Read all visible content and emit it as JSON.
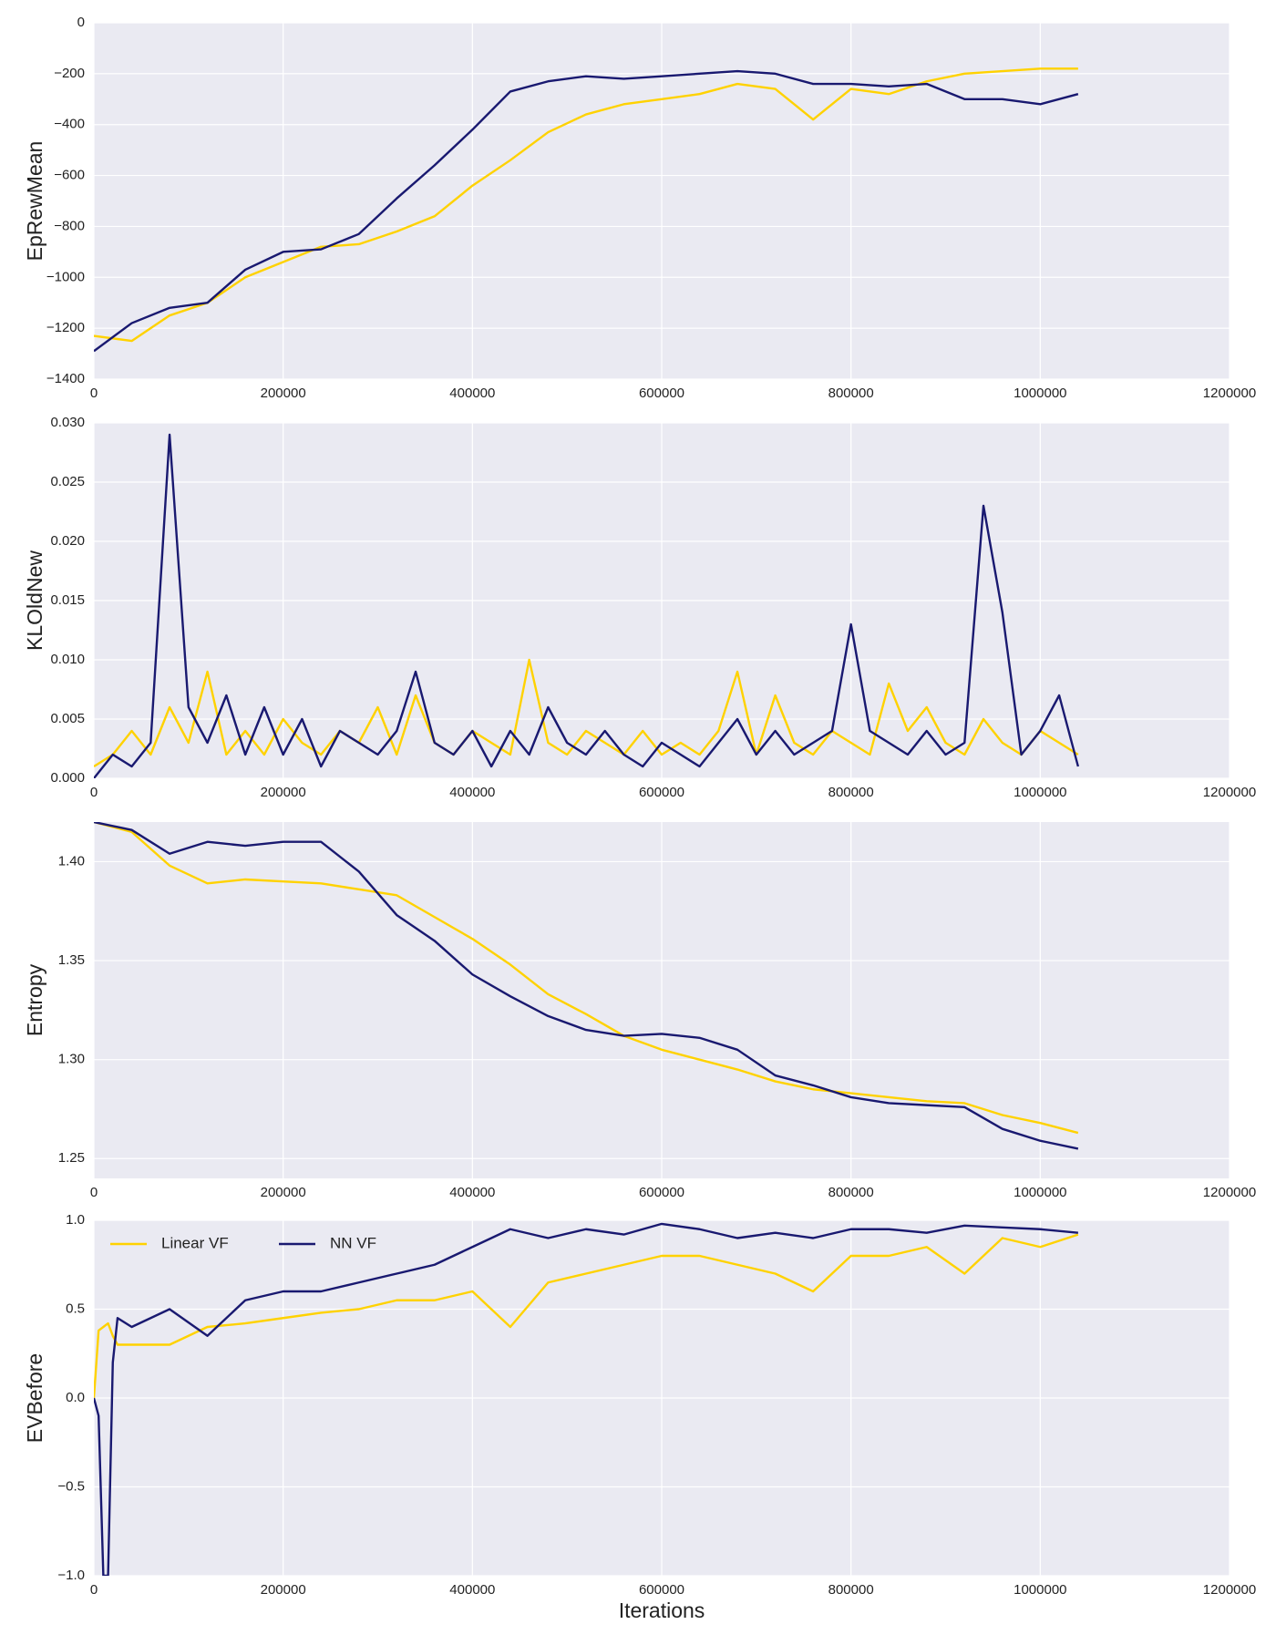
{
  "chart_data": [
    {
      "type": "line",
      "ylabel": "EpRewMean",
      "grid": true,
      "x": [
        0,
        40000,
        80000,
        120000,
        160000,
        200000,
        240000,
        280000,
        320000,
        360000,
        400000,
        440000,
        480000,
        520000,
        560000,
        600000,
        640000,
        680000,
        720000,
        760000,
        800000,
        840000,
        880000,
        920000,
        960000,
        1000000,
        1040000
      ],
      "xlim": [
        0,
        1200000
      ],
      "xticks": [
        0,
        200000,
        400000,
        600000,
        800000,
        1000000,
        1200000
      ],
      "ylim": [
        -1400,
        0
      ],
      "yticks": [
        {
          "value": -1400,
          "label": "−1400"
        },
        {
          "value": -1200,
          "label": "−1200"
        },
        {
          "value": -1000,
          "label": "−1000"
        },
        {
          "value": -800,
          "label": "−800"
        },
        {
          "value": -600,
          "label": "−600"
        },
        {
          "value": -400,
          "label": "−400"
        },
        {
          "value": -200,
          "label": "−200"
        },
        0
      ],
      "series": [
        {
          "color": "#ffd200",
          "values": [
            -1230,
            -1250,
            -1150,
            -1100,
            -1000,
            -940,
            -880,
            -870,
            -820,
            -760,
            -640,
            -540,
            -430,
            -360,
            -320,
            -300,
            -280,
            -240,
            -260,
            -380,
            -260,
            -280,
            -230,
            -200,
            -190,
            -180,
            -180
          ]
        },
        {
          "color": "#191970",
          "values": [
            -1290,
            -1180,
            -1120,
            -1100,
            -970,
            -900,
            -890,
            -830,
            -690,
            -560,
            -420,
            -270,
            -230,
            -210,
            -220,
            -210,
            -200,
            -190,
            -200,
            -240,
            -240,
            -250,
            -240,
            -300,
            -300,
            -320,
            -280
          ]
        }
      ]
    },
    {
      "type": "line",
      "ylabel": "KLOldNew",
      "grid": true,
      "x": [
        0,
        20000,
        40000,
        60000,
        80000,
        100000,
        120000,
        140000,
        160000,
        180000,
        200000,
        220000,
        240000,
        260000,
        280000,
        300000,
        320000,
        340000,
        360000,
        380000,
        400000,
        420000,
        440000,
        460000,
        480000,
        500000,
        520000,
        540000,
        560000,
        580000,
        600000,
        620000,
        640000,
        660000,
        680000,
        700000,
        720000,
        740000,
        760000,
        780000,
        800000,
        820000,
        840000,
        860000,
        880000,
        900000,
        920000,
        940000,
        960000,
        980000,
        1000000,
        1020000,
        1040000
      ],
      "xlim": [
        0,
        1200000
      ],
      "xticks": [
        0,
        200000,
        400000,
        600000,
        800000,
        1000000,
        1200000
      ],
      "ylim": [
        0,
        0.03
      ],
      "yticks": [
        {
          "value": 0,
          "label": "0.000"
        },
        {
          "value": 0.005,
          "label": "0.005"
        },
        {
          "value": 0.01,
          "label": "0.010"
        },
        {
          "value": 0.015,
          "label": "0.015"
        },
        {
          "value": 0.02,
          "label": "0.020"
        },
        {
          "value": 0.025,
          "label": "0.025"
        },
        {
          "value": 0.03,
          "label": "0.030"
        }
      ],
      "series": [
        {
          "color": "#ffd200",
          "values": [
            0.001,
            0.002,
            0.004,
            0.002,
            0.006,
            0.003,
            0.009,
            0.002,
            0.004,
            0.002,
            0.005,
            0.003,
            0.002,
            0.004,
            0.003,
            0.006,
            0.002,
            0.007,
            0.003,
            0.002,
            0.004,
            0.003,
            0.002,
            0.01,
            0.003,
            0.002,
            0.004,
            0.003,
            0.002,
            0.004,
            0.002,
            0.003,
            0.002,
            0.004,
            0.009,
            0.002,
            0.007,
            0.003,
            0.002,
            0.004,
            0.003,
            0.002,
            0.008,
            0.004,
            0.006,
            0.003,
            0.002,
            0.005,
            0.003,
            0.002,
            0.004,
            0.003,
            0.002
          ]
        },
        {
          "color": "#191970",
          "values": [
            0.0,
            0.002,
            0.001,
            0.003,
            0.029,
            0.006,
            0.003,
            0.007,
            0.002,
            0.006,
            0.002,
            0.005,
            0.001,
            0.004,
            0.003,
            0.002,
            0.004,
            0.009,
            0.003,
            0.002,
            0.004,
            0.001,
            0.004,
            0.002,
            0.006,
            0.003,
            0.002,
            0.004,
            0.002,
            0.001,
            0.003,
            0.002,
            0.001,
            0.003,
            0.005,
            0.002,
            0.004,
            0.002,
            0.003,
            0.004,
            0.013,
            0.004,
            0.003,
            0.002,
            0.004,
            0.002,
            0.003,
            0.023,
            0.014,
            0.002,
            0.004,
            0.007,
            0.001
          ]
        }
      ]
    },
    {
      "type": "line",
      "ylabel": "Entropy",
      "grid": true,
      "x": [
        0,
        40000,
        80000,
        120000,
        160000,
        200000,
        240000,
        280000,
        320000,
        360000,
        400000,
        440000,
        480000,
        520000,
        560000,
        600000,
        640000,
        680000,
        720000,
        760000,
        800000,
        840000,
        880000,
        920000,
        960000,
        1000000,
        1040000
      ],
      "xlim": [
        0,
        1200000
      ],
      "xticks": [
        0,
        200000,
        400000,
        600000,
        800000,
        1000000,
        1200000
      ],
      "ylim": [
        1.24,
        1.42
      ],
      "yticks": [
        {
          "value": 1.25,
          "label": "1.25"
        },
        {
          "value": 1.3,
          "label": "1.30"
        },
        {
          "value": 1.35,
          "label": "1.35"
        },
        {
          "value": 1.4,
          "label": "1.40"
        }
      ],
      "series": [
        {
          "color": "#ffd200",
          "values": [
            1.42,
            1.415,
            1.398,
            1.389,
            1.391,
            1.39,
            1.389,
            1.386,
            1.383,
            1.372,
            1.361,
            1.348,
            1.333,
            1.323,
            1.312,
            1.305,
            1.3,
            1.295,
            1.289,
            1.285,
            1.283,
            1.281,
            1.279,
            1.278,
            1.272,
            1.268,
            1.263
          ]
        },
        {
          "color": "#191970",
          "values": [
            1.42,
            1.416,
            1.404,
            1.41,
            1.408,
            1.41,
            1.41,
            1.395,
            1.373,
            1.36,
            1.343,
            1.332,
            1.322,
            1.315,
            1.312,
            1.313,
            1.311,
            1.305,
            1.292,
            1.287,
            1.281,
            1.278,
            1.277,
            1.276,
            1.265,
            1.259,
            1.255
          ]
        }
      ]
    },
    {
      "type": "line",
      "ylabel": "EVBefore",
      "xlabel": "Iterations",
      "grid": true,
      "legend": "upper left",
      "x": [
        0,
        5000,
        10000,
        15000,
        20000,
        25000,
        40000,
        80000,
        120000,
        160000,
        200000,
        240000,
        280000,
        320000,
        360000,
        400000,
        440000,
        480000,
        520000,
        560000,
        600000,
        640000,
        680000,
        720000,
        760000,
        800000,
        840000,
        880000,
        920000,
        960000,
        1000000,
        1040000
      ],
      "xlim": [
        0,
        1200000
      ],
      "xticks": [
        0,
        200000,
        400000,
        600000,
        800000,
        1000000,
        1200000
      ],
      "ylim": [
        -1,
        1
      ],
      "yticks": [
        {
          "value": -1,
          "label": "−1.0"
        },
        {
          "value": -0.5,
          "label": "−0.5"
        },
        {
          "value": 0,
          "label": "0.0"
        },
        {
          "value": 0.5,
          "label": "0.5"
        },
        {
          "value": 1,
          "label": "1.0"
        }
      ],
      "series": [
        {
          "name": "Linear VF",
          "color": "#ffd200",
          "values": [
            0.0,
            0.38,
            0.4,
            0.42,
            0.35,
            0.3,
            0.3,
            0.3,
            0.4,
            0.42,
            0.45,
            0.48,
            0.5,
            0.55,
            0.55,
            0.6,
            0.4,
            0.65,
            0.7,
            0.75,
            0.8,
            0.8,
            0.75,
            0.7,
            0.6,
            0.8,
            0.8,
            0.85,
            0.7,
            0.9,
            0.85,
            0.92
          ]
        },
        {
          "name": "NN VF",
          "color": "#191970",
          "values": [
            0.0,
            -0.1,
            -1.0,
            -1.0,
            0.2,
            0.45,
            0.4,
            0.5,
            0.35,
            0.55,
            0.6,
            0.6,
            0.65,
            0.7,
            0.75,
            0.85,
            0.95,
            0.9,
            0.95,
            0.92,
            0.98,
            0.95,
            0.9,
            0.93,
            0.9,
            0.95,
            0.95,
            0.93,
            0.97,
            0.96,
            0.95,
            0.93
          ]
        }
      ]
    }
  ]
}
